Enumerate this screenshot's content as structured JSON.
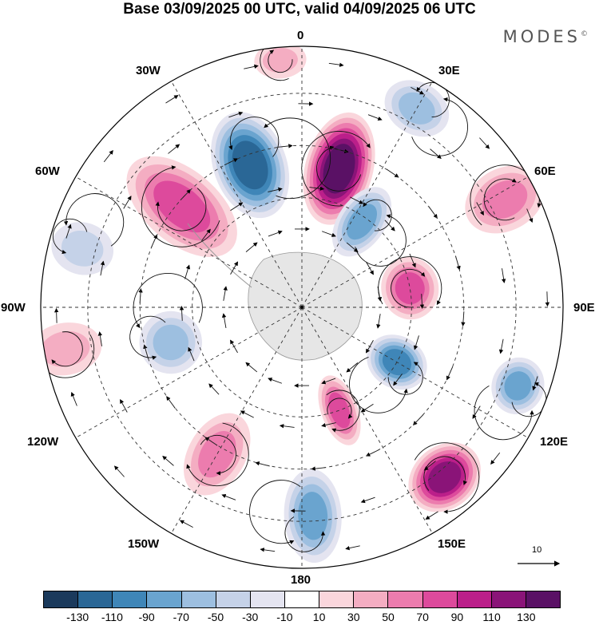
{
  "title": "Base 03/09/2025 00 UTC, valid 04/09/2025 06 UTC",
  "brand": "MODES",
  "brand_mark": "©",
  "longitude_labels": {
    "lon_0": "0",
    "lon_30e": "30E",
    "lon_60e": "60E",
    "lon_90e": "90E",
    "lon_120e": "120E",
    "lon_150e": "150E",
    "lon_180": "180",
    "lon_150w": "150W",
    "lon_120w": "120W",
    "lon_90w": "90W",
    "lon_60w": "60W",
    "lon_30w": "30W"
  },
  "vector_scale": {
    "label": "10"
  },
  "colorbar": {
    "colors": [
      "#1b3a5c",
      "#2a6796",
      "#3f86b8",
      "#6aa4cf",
      "#9dbfe0",
      "#c5d2e8",
      "#e4e4f0",
      "#ffffff",
      "#fad6dc",
      "#f4adc2",
      "#ec7cae",
      "#dd4a9c",
      "#bb1f8a",
      "#8a1478",
      "#5a1165"
    ],
    "ticks": [
      "-130",
      "-110",
      "-90",
      "-70",
      "-50",
      "-30",
      "-10",
      "10",
      "30",
      "50",
      "70",
      "90",
      "110",
      "130"
    ]
  },
  "anomaly_blobs": [
    {
      "lon": 15,
      "colat": 0.55,
      "value": 130,
      "rx": 0.13,
      "ry": 0.22
    },
    {
      "lon": 340,
      "colat": 0.58,
      "value": -120,
      "rx": 0.14,
      "ry": 0.21
    },
    {
      "lon": 310,
      "colat": 0.6,
      "value": 80,
      "rx": 0.14,
      "ry": 0.25
    },
    {
      "lon": 35,
      "colat": 0.4,
      "value": -75,
      "rx": 0.09,
      "ry": 0.15
    },
    {
      "lon": 80,
      "colat": 0.42,
      "value": 75,
      "rx": 0.12,
      "ry": 0.11
    },
    {
      "lon": 120,
      "colat": 0.42,
      "value": -90,
      "rx": 0.1,
      "ry": 0.12
    },
    {
      "lon": 160,
      "colat": 0.42,
      "value": 80,
      "rx": 0.07,
      "ry": 0.14
    },
    {
      "lon": 140,
      "colat": 0.85,
      "value": 110,
      "rx": 0.15,
      "ry": 0.12
    },
    {
      "lon": 177,
      "colat": 0.8,
      "value": -80,
      "rx": 0.11,
      "ry": 0.18
    },
    {
      "lon": 210,
      "colat": 0.65,
      "value": 50,
      "rx": 0.11,
      "ry": 0.17
    },
    {
      "lon": 255,
      "colat": 0.52,
      "value": -50,
      "rx": 0.12,
      "ry": 0.12
    },
    {
      "lon": 285,
      "colat": 0.87,
      "value": -40,
      "rx": 0.1,
      "ry": 0.12
    },
    {
      "lon": 260,
      "colat": 0.92,
      "value": 30,
      "rx": 0.1,
      "ry": 0.14
    },
    {
      "lon": 62,
      "colat": 0.88,
      "value": 50,
      "rx": 0.12,
      "ry": 0.16
    },
    {
      "lon": 30,
      "colat": 0.88,
      "value": -50,
      "rx": 0.13,
      "ry": 0.1
    },
    {
      "lon": 110,
      "colat": 0.88,
      "value": -70,
      "rx": 0.11,
      "ry": 0.1
    },
    {
      "lon": 355,
      "colat": 0.95,
      "value": 30,
      "rx": 0.1,
      "ry": 0.07
    }
  ]
}
